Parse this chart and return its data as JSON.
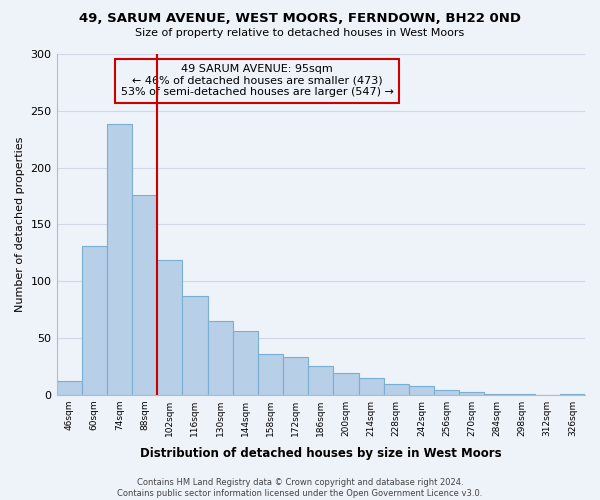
{
  "title": "49, SARUM AVENUE, WEST MOORS, FERNDOWN, BH22 0ND",
  "subtitle": "Size of property relative to detached houses in West Moors",
  "xlabel": "Distribution of detached houses by size in West Moors",
  "ylabel": "Number of detached properties",
  "bar_values": [
    12,
    131,
    238,
    176,
    119,
    87,
    65,
    56,
    36,
    33,
    25,
    19,
    15,
    9,
    8,
    4,
    2,
    1,
    1,
    0,
    1
  ],
  "bar_labels": [
    "46sqm",
    "60sqm",
    "74sqm",
    "88sqm",
    "102sqm",
    "116sqm",
    "130sqm",
    "144sqm",
    "158sqm",
    "172sqm",
    "186sqm",
    "200sqm",
    "214sqm",
    "228sqm",
    "242sqm",
    "256sqm",
    "270sqm",
    "284sqm",
    "298sqm",
    "312sqm",
    "326sqm"
  ],
  "bar_color": "#b8cfe8",
  "bar_edge_color": "#7aafd4",
  "vline_color": "#cc0000",
  "annotation_line1": "49 SARUM AVENUE: 95sqm",
  "annotation_line2": "← 46% of detached houses are smaller (473)",
  "annotation_line3": "53% of semi-detached houses are larger (547) →",
  "ylim": [
    0,
    300
  ],
  "yticks": [
    0,
    50,
    100,
    150,
    200,
    250,
    300
  ],
  "grid_color": "#d0d8e8",
  "background_color": "#eef2f9",
  "footer_line1": "Contains HM Land Registry data © Crown copyright and database right 2024.",
  "footer_line2": "Contains public sector information licensed under the Open Government Licence v3.0."
}
